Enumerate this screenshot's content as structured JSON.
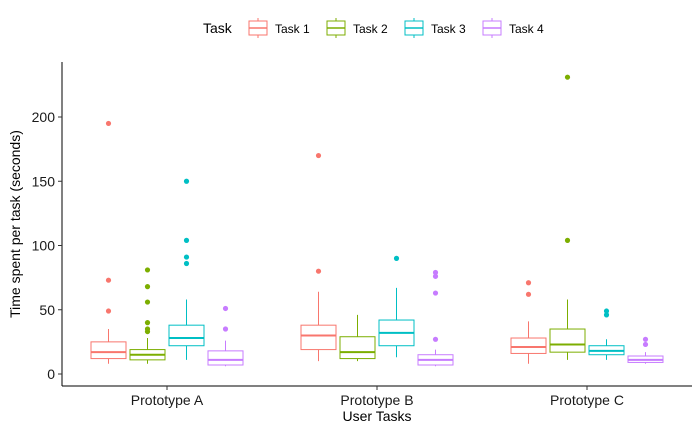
{
  "chart_data": {
    "type": "boxplot",
    "xlabel": "User Tasks",
    "ylabel": "Time spent per task (seconds)",
    "ylim": [
      -3,
      243
    ],
    "yticks": [
      0,
      50,
      100,
      150,
      200
    ],
    "categories": [
      "Prototype A",
      "Prototype B",
      "Prototype C"
    ],
    "legend": {
      "title": "Task",
      "position": "top"
    },
    "grid": false,
    "series": [
      {
        "name": "Task 1",
        "color": "#F8766D",
        "boxes": [
          {
            "min": 8,
            "q1": 12,
            "median": 17,
            "q3": 25,
            "max": 35,
            "outliers": [
              49,
              73,
              195
            ]
          },
          {
            "min": 10,
            "q1": 19,
            "median": 30,
            "q3": 38,
            "max": 64,
            "outliers": [
              80,
              170
            ]
          },
          {
            "min": 8,
            "q1": 16,
            "median": 21,
            "q3": 28,
            "max": 41,
            "outliers": [
              62,
              71
            ]
          }
        ]
      },
      {
        "name": "Task 2",
        "color": "#7CAE00",
        "boxes": [
          {
            "min": 8,
            "q1": 11,
            "median": 15,
            "q3": 19,
            "max": 28,
            "outliers": [
              33,
              35,
              40,
              56,
              68,
              81
            ]
          },
          {
            "min": 10,
            "q1": 12,
            "median": 17,
            "q3": 29,
            "max": 46,
            "outliers": []
          },
          {
            "min": 11,
            "q1": 17,
            "median": 23,
            "q3": 35,
            "max": 58,
            "outliers": [
              104,
              231
            ]
          }
        ]
      },
      {
        "name": "Task 3",
        "color": "#00BFC4",
        "boxes": [
          {
            "min": 11,
            "q1": 22,
            "median": 28,
            "q3": 38,
            "max": 58,
            "outliers": [
              86,
              91,
              104,
              150
            ]
          },
          {
            "min": 13,
            "q1": 22,
            "median": 32,
            "q3": 42,
            "max": 67,
            "outliers": [
              90
            ]
          },
          {
            "min": 11,
            "q1": 15,
            "median": 18,
            "q3": 22,
            "max": 27,
            "outliers": [
              46,
              49
            ]
          }
        ]
      },
      {
        "name": "Task 4",
        "color": "#C77CFF",
        "boxes": [
          {
            "min": 6,
            "q1": 7,
            "median": 11,
            "q3": 18,
            "max": 26,
            "outliers": [
              35,
              51
            ]
          },
          {
            "min": 6,
            "q1": 7,
            "median": 11,
            "q3": 15,
            "max": 19,
            "outliers": [
              27,
              63,
              76,
              79
            ]
          },
          {
            "min": 8,
            "q1": 9,
            "median": 11,
            "q3": 14,
            "max": 17,
            "outliers": [
              23,
              27
            ]
          }
        ]
      }
    ]
  }
}
